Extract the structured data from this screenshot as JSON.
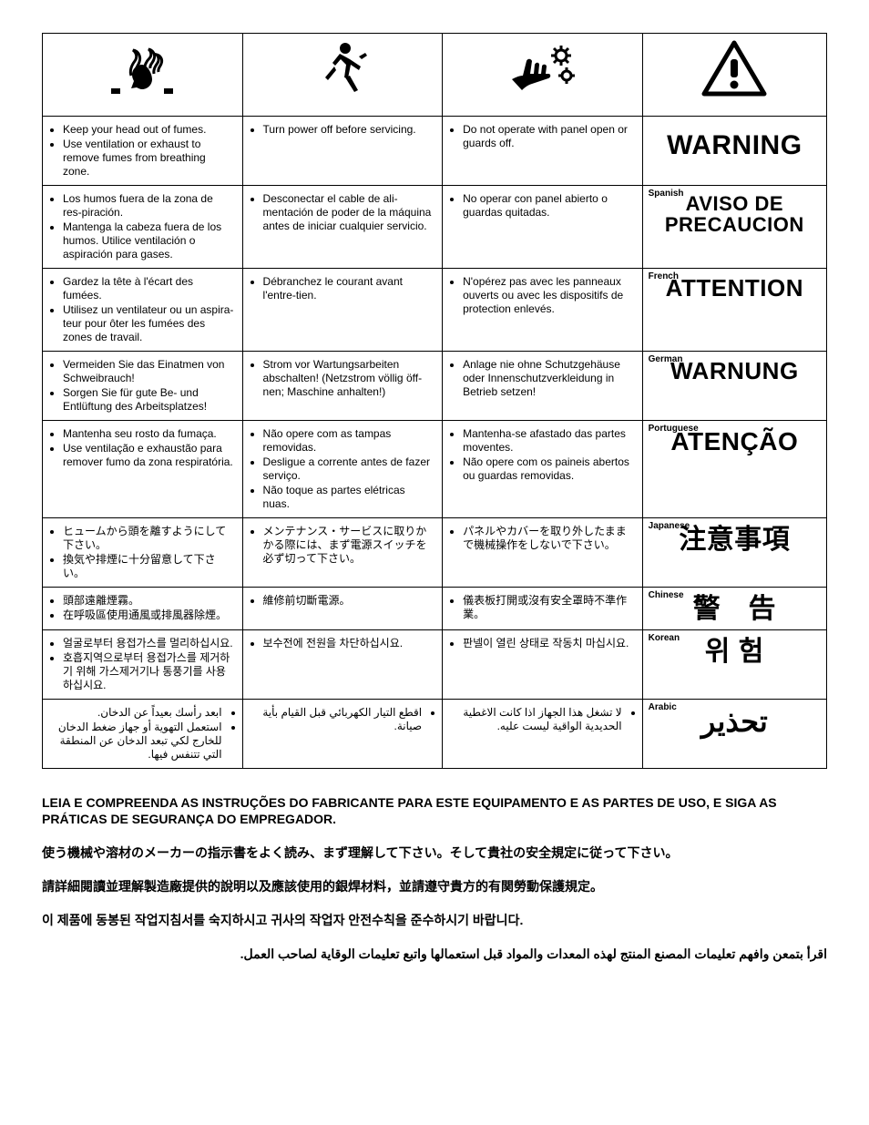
{
  "colors": {
    "border": "#000000",
    "background": "#ffffff",
    "text": "#000000"
  },
  "table": {
    "column_widths_pct": [
      25.5,
      25.5,
      25.5,
      23.5
    ],
    "icons": [
      "fumes-head-icon",
      "running-person-icon",
      "hand-gears-icon",
      "warning-triangle-icon"
    ],
    "rows": [
      {
        "lang": "English",
        "c1": [
          "Keep your head out of fumes.",
          "Use ventilation or exhaust to remove fumes from breathing zone."
        ],
        "c2": [
          "Turn power off before servicing."
        ],
        "c3": [
          "Do not operate with panel open or guards off."
        ],
        "warn_label": "",
        "warn_word": "WARNING",
        "warn_fontsize": 30
      },
      {
        "lang": "Spanish",
        "c1": [
          "Los humos fuera de la zona de res-piración.",
          "Mantenga la cabeza fuera de los humos. Utilice ventilación o aspiración para gases."
        ],
        "c2": [
          "Desconectar el cable de ali-mentación de poder de la máquina antes de iniciar cualquier servicio."
        ],
        "c3": [
          "No operar con panel abierto o guardas quitadas."
        ],
        "warn_label": "Spanish",
        "warn_word": "AVISO DE\nPRECAUCION",
        "warn_fontsize": 22
      },
      {
        "lang": "French",
        "c1": [
          "Gardez la tête à l'écart des fumées.",
          "Utilisez un ventilateur ou un aspira-teur pour ôter les fumées des zones de travail."
        ],
        "c2": [
          "Débranchez le courant avant l'entre-tien."
        ],
        "c3": [
          "N'opérez pas avec les panneaux ouverts ou avec les dispositifs de protection enlevés."
        ],
        "warn_label": "French",
        "warn_word": "ATTENTION",
        "warn_fontsize": 26
      },
      {
        "lang": "German",
        "c1": [
          "Vermeiden Sie das Einatmen von Schweibrauch!",
          "Sorgen Sie für gute Be- und Entlüftung des Arbeitsplatzes!"
        ],
        "c2": [
          "Strom vor Wartungsarbeiten abschalten! (Netzstrom völlig öff-nen; Maschine anhalten!)"
        ],
        "c3": [
          "Anlage nie ohne Schutzgehäuse oder Innenschutzverkleidung in Betrieb setzen!"
        ],
        "warn_label": "German",
        "warn_word": "WARNUNG",
        "warn_fontsize": 26
      },
      {
        "lang": "Portuguese",
        "c1": [
          "Mantenha seu rosto da fumaça.",
          "Use ventilação e exhaustão para remover fumo da zona respiratória."
        ],
        "c2": [
          "Não opere com as tampas removidas.",
          "Desligue a corrente antes de fazer serviço.",
          "Não toque as partes elétricas nuas."
        ],
        "c3": [
          "Mantenha-se afastado das partes moventes.",
          "Não opere com os paineis abertos ou guardas removidas."
        ],
        "warn_label": "Portuguese",
        "warn_word": "ATENÇÃO",
        "warn_fontsize": 28
      },
      {
        "lang": "Japanese",
        "c1": [
          "ヒュームから頭を離すようにして下さい。",
          "換気や排煙に十分留意して下さい。"
        ],
        "c2": [
          "メンテナンス・サービスに取りかかる際には、まず電源スイッチを必ず切って下さい。"
        ],
        "c3": [
          "パネルやカバーを取り外したままで機械操作をしないで下さい。"
        ],
        "warn_label": "Japanese",
        "warn_word": "注意事項",
        "warn_fontsize": 30
      },
      {
        "lang": "Chinese",
        "c1": [
          "頭部遠離煙霧。",
          "在呼吸區使用通風或排風器除煙。"
        ],
        "c2": [
          "維修前切斷電源。"
        ],
        "c3": [
          "儀表板打開或沒有安全罩時不準作業。"
        ],
        "warn_label": "Chinese",
        "warn_word": "警　告",
        "warn_fontsize": 30
      },
      {
        "lang": "Korean",
        "c1": [
          "얼굴로부터 용접가스를 멀리하십시요.",
          "호흡지역으로부터 용접가스를 제거하기 위해 가스제거기나 통풍기를 사용하십시요."
        ],
        "c2": [
          "보수전에 전원을 차단하십시요."
        ],
        "c3": [
          "판넬이 열린 상태로 작동치 마십시요."
        ],
        "warn_label": "Korean",
        "warn_word": "위 험",
        "warn_fontsize": 30
      },
      {
        "lang": "Arabic",
        "c1": [
          "ابعد رأسك بعيداً عن الدخان.",
          "استعمل التهوية أو جهاز ضغط الدخان للخارج لكي تبعد الدخان عن المنطقة التي تتنفس فيها."
        ],
        "c2": [
          "اقطع التيار الكهربائي قبل القيام بأية صيانة."
        ],
        "c3": [
          "لا تشغل هذا الجهاز اذا كانت الاغطية الحديدية الواقية ليست عليه."
        ],
        "warn_label": "Arabic",
        "warn_word": "تحذير",
        "warn_fontsize": 32,
        "rtl": true
      }
    ]
  },
  "footer": [
    {
      "text": "LEIA E COMPREENDA AS INSTRUÇÕES DO FABRICANTE PARA ESTE EQUIPAMENTO E AS PARTES DE USO, E SIGA AS PRÁTICAS DE SEGURANÇA DO EMPREGADOR.",
      "rtl": false
    },
    {
      "text": "使う機械や溶材のメーカーの指示書をよく読み、まず理解して下さい。そして貴社の安全規定に従って下さい。",
      "rtl": false
    },
    {
      "text": "請詳細閱讀並理解製造廠提供的說明以及應該使用的銀焊材料，並請遵守貴方的有関勞動保護規定。",
      "rtl": false
    },
    {
      "text": "이 제품에 동봉된 작업지침서를 숙지하시고 귀사의 작업자 안전수칙을 준수하시기 바랍니다.",
      "rtl": false
    },
    {
      "text": "اقرأ بتمعن وافهم تعليمات المصنع المنتج لهذه المعدات والمواد قبل استعمالها واتبع تعليمات الوقاية لصاحب العمل.",
      "rtl": true
    }
  ]
}
